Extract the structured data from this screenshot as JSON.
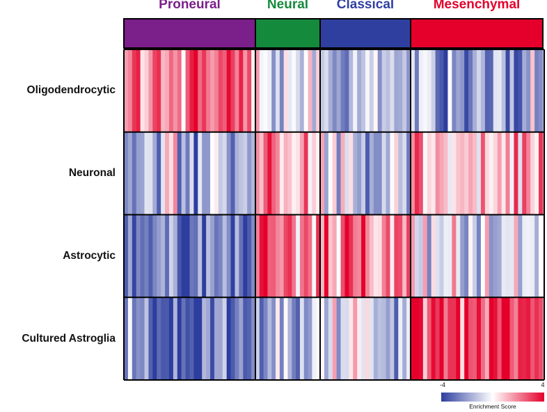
{
  "chart_data": {
    "type": "heatmap",
    "title": "",
    "column_groups": [
      {
        "name": "Proneural",
        "color": "#7b1f8a",
        "samples": 32
      },
      {
        "name": "Neural",
        "color": "#148a3c",
        "samples": 16
      },
      {
        "name": "Classical",
        "color": "#2f3fa0",
        "samples": 22
      },
      {
        "name": "Mesenchymal",
        "color": "#e4002b",
        "samples": 32
      }
    ],
    "rows": [
      {
        "label": "Oligodendrocytic",
        "group_mean": [
          2.5,
          -0.5,
          -1.5,
          -2.0
        ]
      },
      {
        "label": "Neuronal",
        "group_mean": [
          -1.5,
          1.8,
          -0.8,
          1.0
        ]
      },
      {
        "label": "Astrocytic",
        "group_mean": [
          -3.0,
          2.5,
          2.0,
          -0.3
        ]
      },
      {
        "label": "Cultured Astroglia",
        "group_mean": [
          -3.0,
          -1.0,
          -0.5,
          3.2
        ]
      }
    ],
    "colorscale": {
      "min": -4,
      "max": 4,
      "min_label": "-4",
      "max_label": "4",
      "low_color": "#2d3e9e",
      "mid_color": "#ffffff",
      "high_color": "#e4002b",
      "title": "Enrichment Score"
    }
  }
}
